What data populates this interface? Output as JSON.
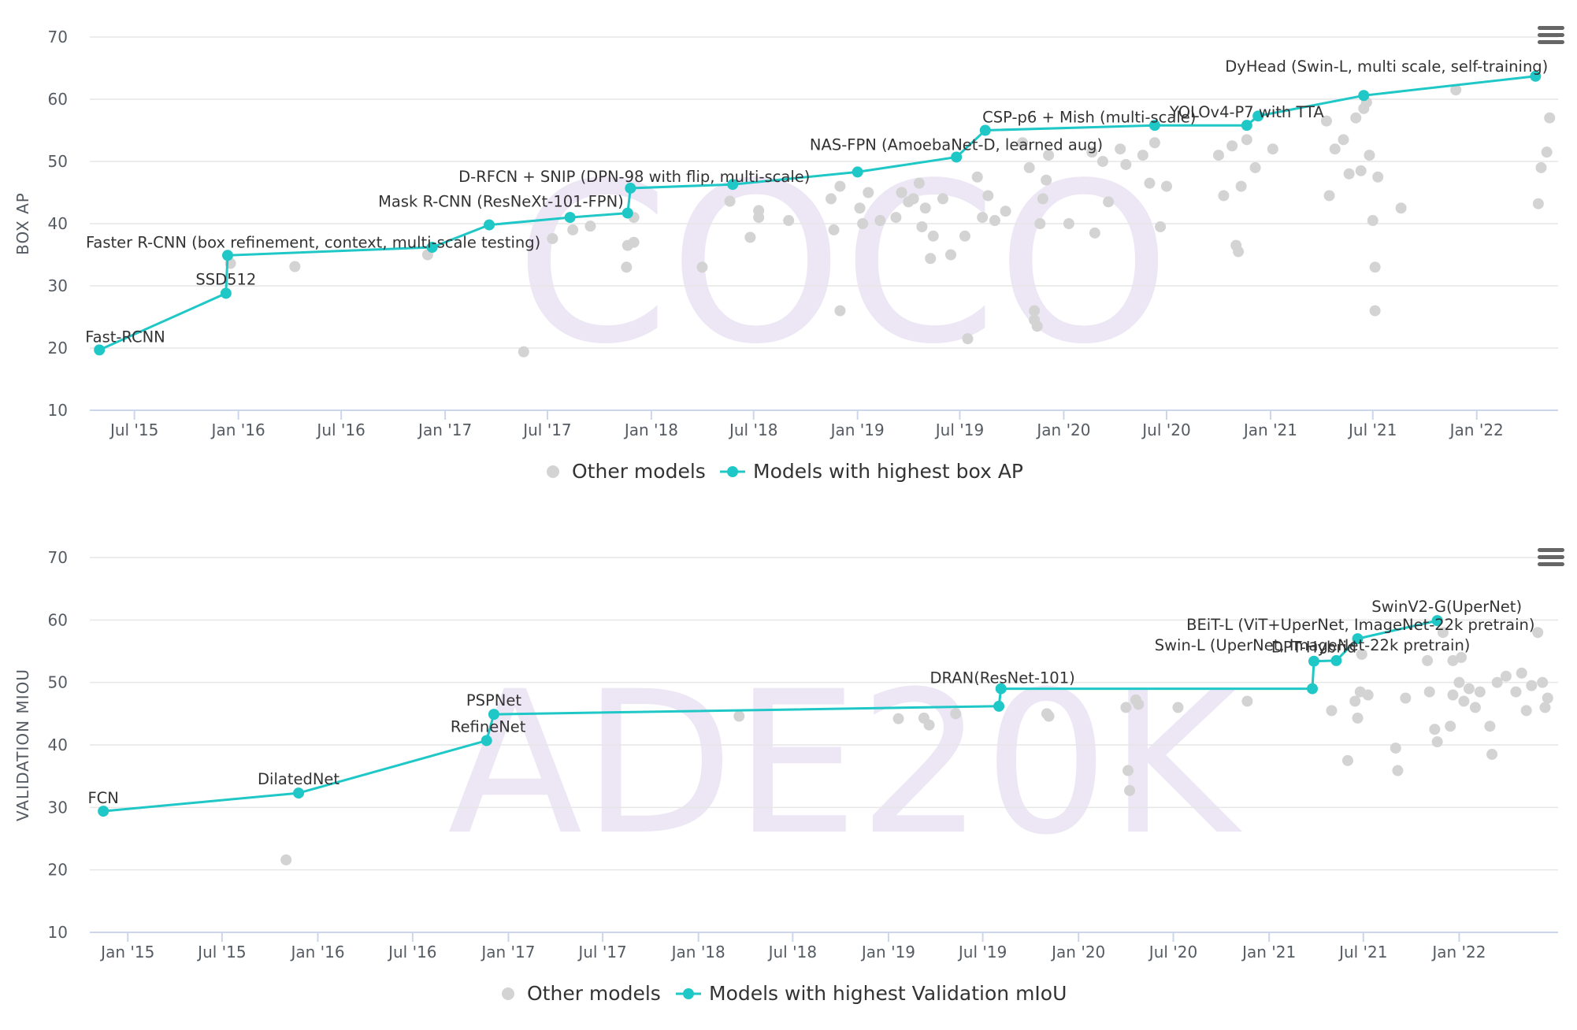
{
  "colors": {
    "highlight": "#1fc7c7",
    "other": "#d3d3d3",
    "grid": "#e6e6e6",
    "axis": "#ccd6eb",
    "watermark": "#ece6f5"
  },
  "icons": {
    "menu": "hamburger-menu-icon"
  },
  "chart_data": [
    {
      "type": "scatter",
      "watermark": "COCO",
      "ylabel": "BOX AP",
      "ylim": [
        10,
        70
      ],
      "yticks": [
        10,
        20,
        30,
        40,
        50,
        60,
        70
      ],
      "xlim": [
        "2015-04-13",
        "2022-05-25"
      ],
      "xticks": [
        {
          "date": "2015-07-01",
          "label": "Jul '15"
        },
        {
          "date": "2016-01-01",
          "label": "Jan '16"
        },
        {
          "date": "2016-07-01",
          "label": "Jul '16"
        },
        {
          "date": "2017-01-01",
          "label": "Jan '17"
        },
        {
          "date": "2017-07-01",
          "label": "Jul '17"
        },
        {
          "date": "2018-01-01",
          "label": "Jan '18"
        },
        {
          "date": "2018-07-01",
          "label": "Jul '18"
        },
        {
          "date": "2019-01-01",
          "label": "Jan '19"
        },
        {
          "date": "2019-07-01",
          "label": "Jul '19"
        },
        {
          "date": "2020-01-01",
          "label": "Jan '20"
        },
        {
          "date": "2020-07-01",
          "label": "Jul '20"
        },
        {
          "date": "2021-01-01",
          "label": "Jan '21"
        },
        {
          "date": "2021-07-01",
          "label": "Jul '21"
        },
        {
          "date": "2022-01-01",
          "label": "Jan '22"
        }
      ],
      "legend": [
        "Other models",
        "Models with highest box AP"
      ],
      "grid": true,
      "highlight_series": [
        {
          "x": "2015-04-30",
          "y": 19.7,
          "label": "Fast-RCNN"
        },
        {
          "x": "2015-12-10",
          "y": 28.8,
          "label": "SSD512"
        },
        {
          "x": "2015-12-13",
          "y": 34.9,
          "label": "Faster R-CNN (box refinement, context, multi-scale testing)"
        },
        {
          "x": "2016-12-09",
          "y": 36.2,
          "label": ""
        },
        {
          "x": "2017-03-20",
          "y": 39.8,
          "label": ""
        },
        {
          "x": "2017-08-10",
          "y": 41.0,
          "label": ""
        },
        {
          "x": "2017-11-20",
          "y": 41.7,
          "label": "Mask R-CNN (ResNeXt-101-FPN)"
        },
        {
          "x": "2017-11-25",
          "y": 45.7,
          "label": "D-RFCN + SNIP (DPN-98 with flip, multi-scale)"
        },
        {
          "x": "2018-05-25",
          "y": 46.3,
          "label": ""
        },
        {
          "x": "2019-01-01",
          "y": 48.3,
          "label": ""
        },
        {
          "x": "2019-06-25",
          "y": 50.7,
          "label": "NAS-FPN (AmoebaNet-D, learned aug)"
        },
        {
          "x": "2019-08-15",
          "y": 55.0,
          "label": "CSP-p6 + Mish (multi-scale)"
        },
        {
          "x": "2020-06-10",
          "y": 55.8,
          "label": ""
        },
        {
          "x": "2020-11-20",
          "y": 55.8,
          "label": "YOLOv4-P7 with TTA"
        },
        {
          "x": "2020-12-10",
          "y": 57.3,
          "label": ""
        },
        {
          "x": "2021-06-15",
          "y": 60.6,
          "label": ""
        },
        {
          "x": "2022-04-15",
          "y": 63.7,
          "label": "DyHead (Swin-L, multi scale, self-training)"
        }
      ],
      "other_models": [
        {
          "x": "2015-12-18",
          "y": 33.6
        },
        {
          "x": "2016-04-10",
          "y": 33.1
        },
        {
          "x": "2016-12-01",
          "y": 35.0
        },
        {
          "x": "2017-05-20",
          "y": 19.4
        },
        {
          "x": "2017-07-10",
          "y": 37.6
        },
        {
          "x": "2017-08-15",
          "y": 39.0
        },
        {
          "x": "2017-09-15",
          "y": 39.6
        },
        {
          "x": "2017-11-18",
          "y": 33.0
        },
        {
          "x": "2017-11-20",
          "y": 36.5
        },
        {
          "x": "2017-12-01",
          "y": 37.0
        },
        {
          "x": "2017-12-01",
          "y": 41.0
        },
        {
          "x": "2018-04-01",
          "y": 33.0
        },
        {
          "x": "2018-05-20",
          "y": 43.6
        },
        {
          "x": "2018-06-25",
          "y": 37.8
        },
        {
          "x": "2018-07-10",
          "y": 41.0
        },
        {
          "x": "2018-07-10",
          "y": 42.1
        },
        {
          "x": "2018-09-01",
          "y": 40.5
        },
        {
          "x": "2018-11-15",
          "y": 44.0
        },
        {
          "x": "2018-11-20",
          "y": 39.0
        },
        {
          "x": "2018-12-01",
          "y": 46.0
        },
        {
          "x": "2018-12-01",
          "y": 26.0
        },
        {
          "x": "2019-01-05",
          "y": 42.5
        },
        {
          "x": "2019-01-10",
          "y": 40.0
        },
        {
          "x": "2019-01-20",
          "y": 45.0
        },
        {
          "x": "2019-02-10",
          "y": 40.5
        },
        {
          "x": "2019-03-10",
          "y": 41.0
        },
        {
          "x": "2019-03-20",
          "y": 45.0
        },
        {
          "x": "2019-04-01",
          "y": 43.5
        },
        {
          "x": "2019-04-10",
          "y": 44.0
        },
        {
          "x": "2019-04-20",
          "y": 46.5
        },
        {
          "x": "2019-04-25",
          "y": 39.5
        },
        {
          "x": "2019-05-01",
          "y": 42.5
        },
        {
          "x": "2019-05-10",
          "y": 34.4
        },
        {
          "x": "2019-05-15",
          "y": 38.0
        },
        {
          "x": "2019-06-01",
          "y": 44.0
        },
        {
          "x": "2019-06-15",
          "y": 35.0
        },
        {
          "x": "2019-07-10",
          "y": 38.0
        },
        {
          "x": "2019-07-15",
          "y": 21.5
        },
        {
          "x": "2019-08-01",
          "y": 47.5
        },
        {
          "x": "2019-08-10",
          "y": 41.0
        },
        {
          "x": "2019-08-20",
          "y": 44.5
        },
        {
          "x": "2019-09-01",
          "y": 40.5
        },
        {
          "x": "2019-09-20",
          "y": 42.0
        },
        {
          "x": "2019-10-20",
          "y": 53.0
        },
        {
          "x": "2019-11-01",
          "y": 49.0
        },
        {
          "x": "2019-11-10",
          "y": 26.0
        },
        {
          "x": "2019-11-10",
          "y": 24.5
        },
        {
          "x": "2019-11-15",
          "y": 23.5
        },
        {
          "x": "2019-11-20",
          "y": 40.0
        },
        {
          "x": "2019-11-25",
          "y": 44.0
        },
        {
          "x": "2019-12-01",
          "y": 47.0
        },
        {
          "x": "2019-12-05",
          "y": 51.0
        },
        {
          "x": "2020-01-10",
          "y": 40.0
        },
        {
          "x": "2020-02-20",
          "y": 51.5
        },
        {
          "x": "2020-02-25",
          "y": 38.5
        },
        {
          "x": "2020-03-10",
          "y": 50.0
        },
        {
          "x": "2020-03-20",
          "y": 43.5
        },
        {
          "x": "2020-04-10",
          "y": 52.0
        },
        {
          "x": "2020-04-20",
          "y": 49.5
        },
        {
          "x": "2020-05-20",
          "y": 51.0
        },
        {
          "x": "2020-06-01",
          "y": 46.5
        },
        {
          "x": "2020-06-10",
          "y": 53.0
        },
        {
          "x": "2020-06-20",
          "y": 39.5
        },
        {
          "x": "2020-07-01",
          "y": 46.0
        },
        {
          "x": "2020-10-01",
          "y": 51.0
        },
        {
          "x": "2020-10-10",
          "y": 44.5
        },
        {
          "x": "2020-10-25",
          "y": 52.5
        },
        {
          "x": "2020-11-01",
          "y": 36.5
        },
        {
          "x": "2020-11-05",
          "y": 35.5
        },
        {
          "x": "2020-11-10",
          "y": 46.0
        },
        {
          "x": "2020-11-20",
          "y": 53.5
        },
        {
          "x": "2020-12-05",
          "y": 49.0
        },
        {
          "x": "2021-01-05",
          "y": 52.0
        },
        {
          "x": "2021-04-10",
          "y": 56.5
        },
        {
          "x": "2021-04-15",
          "y": 44.5
        },
        {
          "x": "2021-04-25",
          "y": 52.0
        },
        {
          "x": "2021-05-10",
          "y": 53.5
        },
        {
          "x": "2021-05-20",
          "y": 48.0
        },
        {
          "x": "2021-06-01",
          "y": 57.0
        },
        {
          "x": "2021-06-10",
          "y": 48.5
        },
        {
          "x": "2021-06-15",
          "y": 58.5
        },
        {
          "x": "2021-06-20",
          "y": 59.5
        },
        {
          "x": "2021-06-25",
          "y": 51.0
        },
        {
          "x": "2021-07-01",
          "y": 40.5
        },
        {
          "x": "2021-07-05",
          "y": 33.0
        },
        {
          "x": "2021-07-05",
          "y": 26.0
        },
        {
          "x": "2021-07-10",
          "y": 47.5
        },
        {
          "x": "2021-08-20",
          "y": 42.5
        },
        {
          "x": "2021-11-25",
          "y": 61.5
        },
        {
          "x": "2022-04-20",
          "y": 43.2
        },
        {
          "x": "2022-04-25",
          "y": 49.0
        },
        {
          "x": "2022-05-05",
          "y": 51.5
        },
        {
          "x": "2022-05-10",
          "y": 57.0
        }
      ]
    },
    {
      "type": "scatter",
      "watermark": "ADE20K",
      "ylabel": "VALIDATION MIOU",
      "ylim": [
        10,
        70
      ],
      "yticks": [
        10,
        20,
        30,
        40,
        50,
        60,
        70
      ],
      "xlim": [
        "2014-10-20",
        "2022-07-10"
      ],
      "xticks": [
        {
          "date": "2015-01-01",
          "label": "Jan '15"
        },
        {
          "date": "2015-07-01",
          "label": "Jul '15"
        },
        {
          "date": "2016-01-01",
          "label": "Jan '16"
        },
        {
          "date": "2016-07-01",
          "label": "Jul '16"
        },
        {
          "date": "2017-01-01",
          "label": "Jan '17"
        },
        {
          "date": "2017-07-01",
          "label": "Jul '17"
        },
        {
          "date": "2018-01-01",
          "label": "Jan '18"
        },
        {
          "date": "2018-07-01",
          "label": "Jul '18"
        },
        {
          "date": "2019-01-01",
          "label": "Jan '19"
        },
        {
          "date": "2019-07-01",
          "label": "Jul '19"
        },
        {
          "date": "2020-01-01",
          "label": "Jan '20"
        },
        {
          "date": "2020-07-01",
          "label": "Jul '20"
        },
        {
          "date": "2021-01-01",
          "label": "Jan '21"
        },
        {
          "date": "2021-07-01",
          "label": "Jul '21"
        },
        {
          "date": "2022-01-01",
          "label": "Jan '22"
        }
      ],
      "legend": [
        "Other models",
        "Models with highest Validation mIoU"
      ],
      "grid": true,
      "highlight_series": [
        {
          "x": "2014-11-15",
          "y": 29.4,
          "label": "FCN"
        },
        {
          "x": "2015-11-25",
          "y": 32.3,
          "label": "DilatedNet"
        },
        {
          "x": "2016-11-20",
          "y": 40.7,
          "label": "RefineNet"
        },
        {
          "x": "2016-12-04",
          "y": 44.9,
          "label": "PSPNet"
        },
        {
          "x": "2019-08-01",
          "y": 46.2,
          "label": ""
        },
        {
          "x": "2019-08-05",
          "y": 49.0,
          "label": "DRAN(ResNet-101)"
        },
        {
          "x": "2021-03-25",
          "y": 49.0,
          "label": ""
        },
        {
          "x": "2021-03-28",
          "y": 53.4,
          "label": "DPT-Hybrid"
        },
        {
          "x": "2021-05-10",
          "y": 53.5,
          "label": "Swin-L (UperNet, ImageNet-22k pretrain)"
        },
        {
          "x": "2021-06-20",
          "y": 57.0,
          "label": "BEiT-L (ViT+UperNet, ImageNet-22k pretrain)"
        },
        {
          "x": "2021-11-20",
          "y": 59.9,
          "label": "SwinV2-G(UperNet)"
        }
      ],
      "other_models": [
        {
          "x": "2015-11-01",
          "y": 21.6
        },
        {
          "x": "2018-03-20",
          "y": 44.6
        },
        {
          "x": "2019-01-20",
          "y": 44.2
        },
        {
          "x": "2019-03-10",
          "y": 44.3
        },
        {
          "x": "2019-03-20",
          "y": 43.2
        },
        {
          "x": "2019-05-10",
          "y": 45.0
        },
        {
          "x": "2019-11-01",
          "y": 45.0
        },
        {
          "x": "2019-11-05",
          "y": 44.6
        },
        {
          "x": "2020-04-01",
          "y": 46.0
        },
        {
          "x": "2020-04-05",
          "y": 35.9
        },
        {
          "x": "2020-04-08",
          "y": 32.7
        },
        {
          "x": "2020-04-20",
          "y": 47.2
        },
        {
          "x": "2020-04-25",
          "y": 46.5
        },
        {
          "x": "2020-07-10",
          "y": 46.0
        },
        {
          "x": "2020-11-20",
          "y": 47.0
        },
        {
          "x": "2021-05-01",
          "y": 45.5
        },
        {
          "x": "2021-06-01",
          "y": 37.5
        },
        {
          "x": "2021-06-15",
          "y": 47.0
        },
        {
          "x": "2021-06-20",
          "y": 44.3
        },
        {
          "x": "2021-06-25",
          "y": 48.5
        },
        {
          "x": "2021-06-28",
          "y": 54.5
        },
        {
          "x": "2021-07-10",
          "y": 48.0
        },
        {
          "x": "2021-09-01",
          "y": 39.5
        },
        {
          "x": "2021-09-05",
          "y": 35.9
        },
        {
          "x": "2021-09-20",
          "y": 47.5
        },
        {
          "x": "2021-11-01",
          "y": 53.5
        },
        {
          "x": "2021-11-05",
          "y": 48.5
        },
        {
          "x": "2021-11-15",
          "y": 42.5
        },
        {
          "x": "2021-11-20",
          "y": 40.5
        },
        {
          "x": "2021-12-01",
          "y": 58.0
        },
        {
          "x": "2021-12-15",
          "y": 43.0
        },
        {
          "x": "2021-12-20",
          "y": 48.0
        },
        {
          "x": "2021-12-20",
          "y": 53.5
        },
        {
          "x": "2022-01-01",
          "y": 50.0
        },
        {
          "x": "2022-01-05",
          "y": 54.0
        },
        {
          "x": "2022-01-10",
          "y": 47.0
        },
        {
          "x": "2022-01-20",
          "y": 49.0
        },
        {
          "x": "2022-02-01",
          "y": 46.0
        },
        {
          "x": "2022-02-10",
          "y": 48.5
        },
        {
          "x": "2022-03-01",
          "y": 43.0
        },
        {
          "x": "2022-03-05",
          "y": 38.5
        },
        {
          "x": "2022-03-15",
          "y": 50.0
        },
        {
          "x": "2022-04-01",
          "y": 51.0
        },
        {
          "x": "2022-04-20",
          "y": 48.5
        },
        {
          "x": "2022-05-01",
          "y": 51.5
        },
        {
          "x": "2022-05-10",
          "y": 45.5
        },
        {
          "x": "2022-05-20",
          "y": 49.5
        },
        {
          "x": "2022-06-01",
          "y": 58.0
        },
        {
          "x": "2022-06-10",
          "y": 50.0
        },
        {
          "x": "2022-06-15",
          "y": 46.0
        },
        {
          "x": "2022-06-20",
          "y": 47.5
        }
      ]
    }
  ]
}
